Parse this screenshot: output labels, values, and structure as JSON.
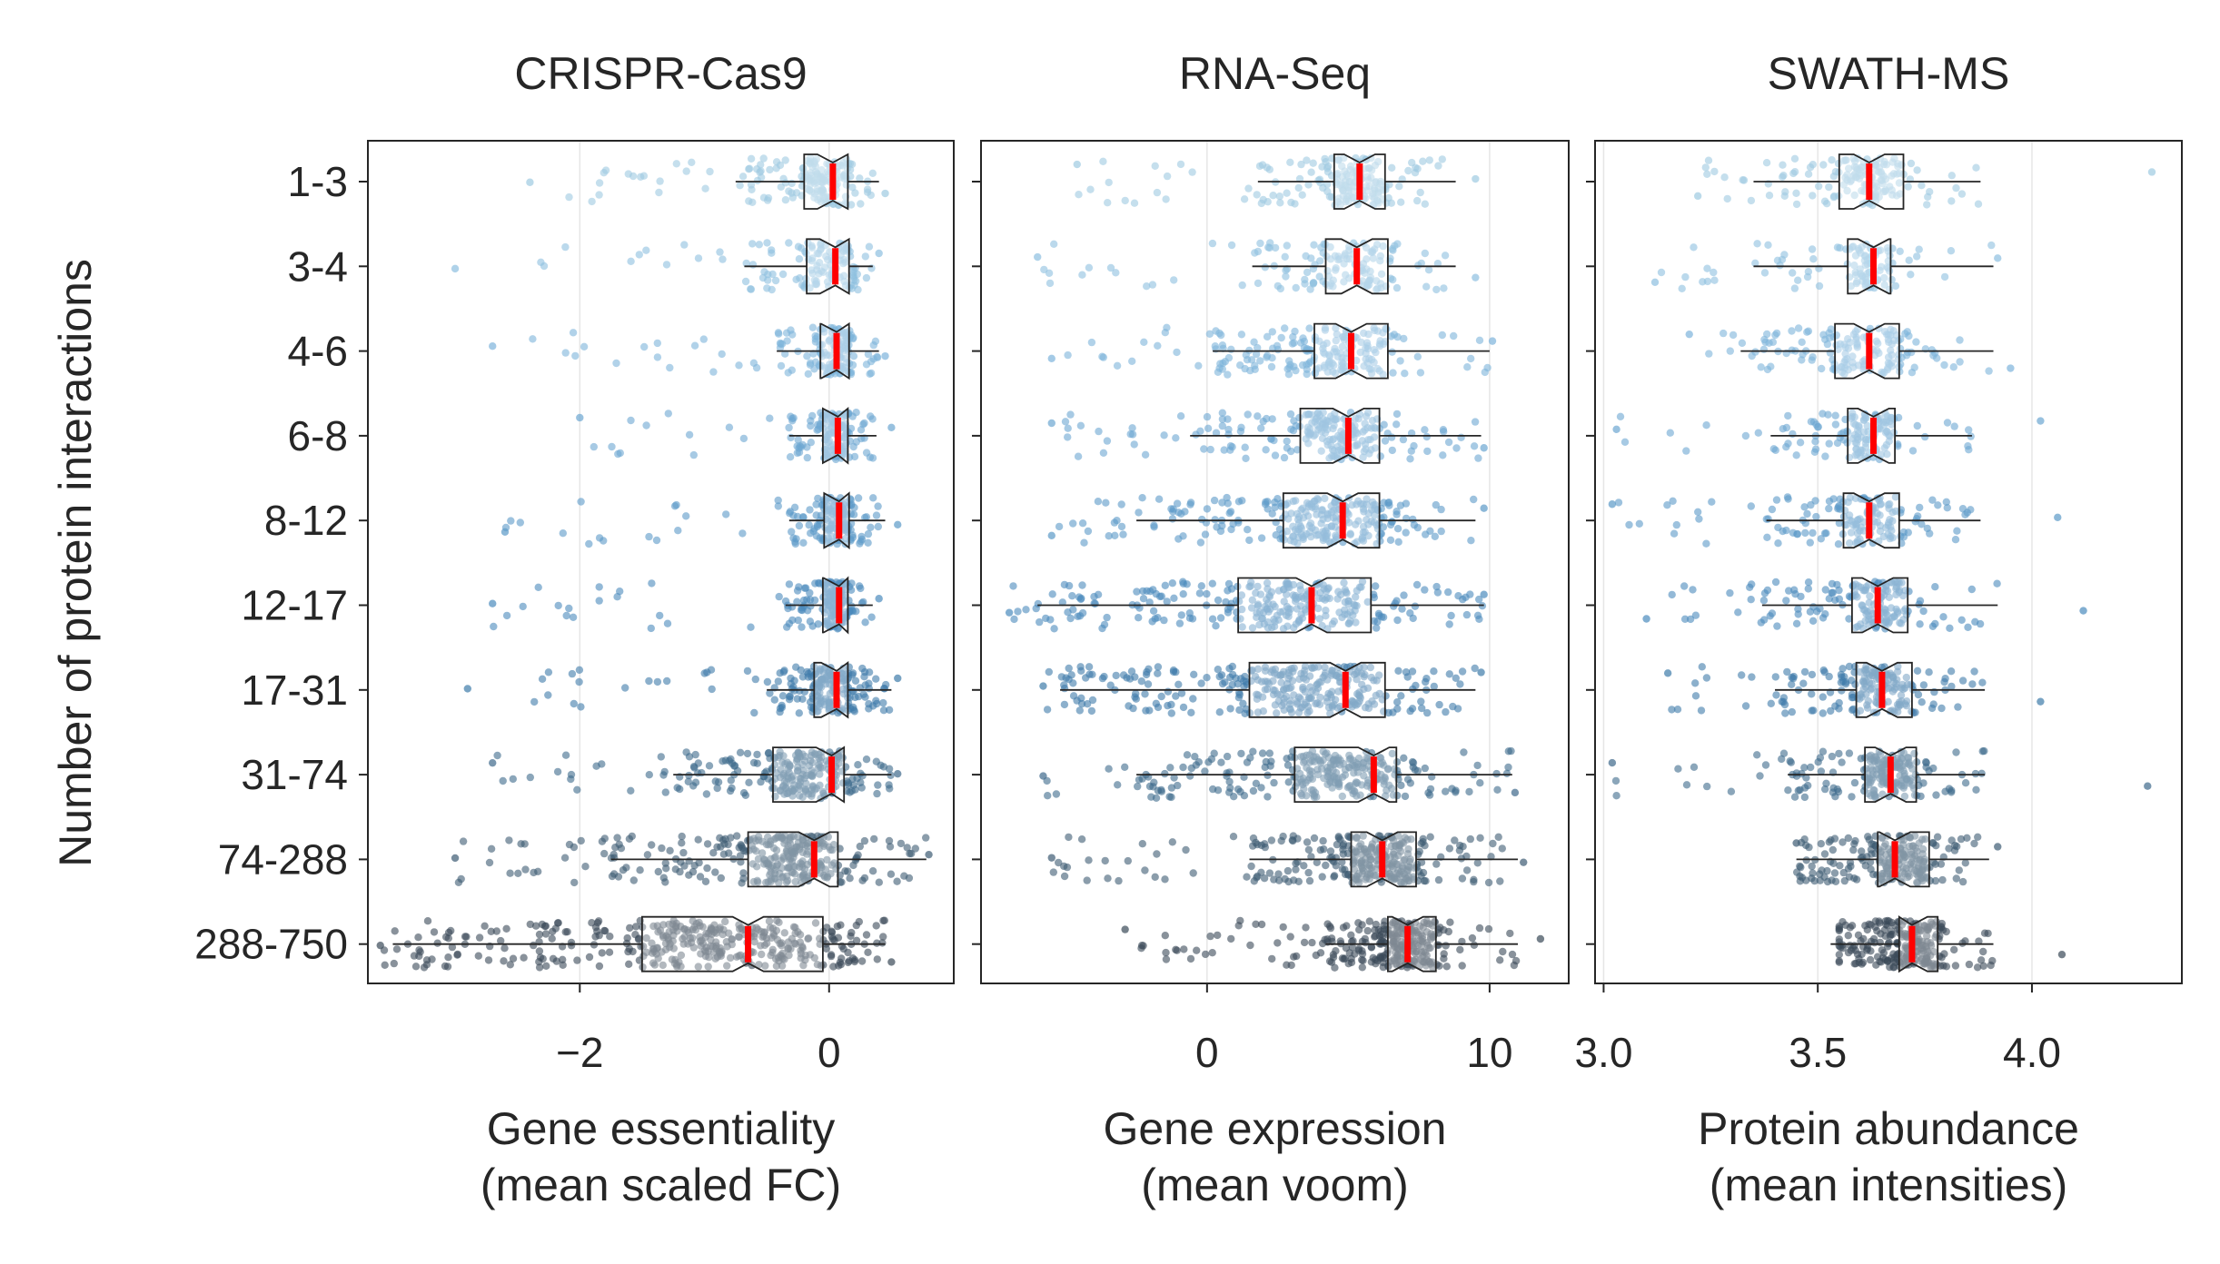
{
  "chart_data": {
    "type": "box-strip",
    "ylabel": "Number of protein interactions",
    "categories": [
      "1-3",
      "3-4",
      "4-6",
      "6-8",
      "8-12",
      "12-17",
      "17-31",
      "31-74",
      "74-288",
      "288-750"
    ],
    "point_colors": [
      "#9ecae1",
      "#8dbfdf",
      "#7db4db",
      "#6ca7d2",
      "#5b9ac8",
      "#4b8bbd",
      "#3f7caa",
      "#3e6a8c",
      "#3d5b73",
      "#3b4a58"
    ],
    "median_color": "#ff0000",
    "panels": [
      {
        "title": "CRISPR-Cas9",
        "xlabel_line1": "Gene essentiality",
        "xlabel_line2": "(mean scaled FC)",
        "xlim": [
          -3.7,
          1.0
        ],
        "ticks": [
          -2,
          0
        ],
        "tick_labels": [
          "−2",
          "0"
        ],
        "boxes": [
          {
            "wlo": -0.75,
            "q1": -0.2,
            "med": 0.03,
            "q3": 0.15,
            "whi": 0.4,
            "plo": -2.4,
            "phi": 0.45,
            "n": 180
          },
          {
            "wlo": -0.68,
            "q1": -0.18,
            "med": 0.05,
            "q3": 0.16,
            "whi": 0.35,
            "plo": -3.0,
            "phi": 0.4,
            "n": 130
          },
          {
            "wlo": -0.42,
            "q1": -0.07,
            "med": 0.06,
            "q3": 0.16,
            "whi": 0.4,
            "plo": -2.7,
            "phi": 0.45,
            "n": 160
          },
          {
            "wlo": -0.32,
            "q1": -0.05,
            "med": 0.07,
            "q3": 0.15,
            "whi": 0.38,
            "plo": -2.0,
            "phi": 0.5,
            "n": 150
          },
          {
            "wlo": -0.32,
            "q1": -0.04,
            "med": 0.08,
            "q3": 0.16,
            "whi": 0.45,
            "plo": -2.6,
            "phi": 0.55,
            "n": 170
          },
          {
            "wlo": -0.35,
            "q1": -0.05,
            "med": 0.08,
            "q3": 0.15,
            "whi": 0.35,
            "plo": -2.7,
            "phi": 0.4,
            "n": 170
          },
          {
            "wlo": -0.5,
            "q1": -0.12,
            "med": 0.06,
            "q3": 0.15,
            "whi": 0.5,
            "plo": -2.9,
            "phi": 0.55,
            "n": 200
          },
          {
            "wlo": -1.25,
            "q1": -0.45,
            "med": 0.02,
            "q3": 0.12,
            "whi": 0.5,
            "plo": -2.7,
            "phi": 0.55,
            "n": 250
          },
          {
            "wlo": -1.75,
            "q1": -0.65,
            "med": -0.12,
            "q3": 0.07,
            "whi": 0.78,
            "plo": -3.0,
            "phi": 0.8,
            "n": 300
          },
          {
            "wlo": -3.5,
            "q1": -1.5,
            "med": -0.65,
            "q3": -0.05,
            "whi": 0.45,
            "plo": -3.6,
            "phi": 0.5,
            "n": 380
          }
        ]
      },
      {
        "title": "RNA-Seq",
        "xlabel_line1": "Gene expression",
        "xlabel_line2": "(mean voom)",
        "xlim": [
          -8.0,
          12.8
        ],
        "ticks": [
          0,
          10
        ],
        "tick_labels": [
          "0",
          "10"
        ],
        "boxes": [
          {
            "wlo": 1.8,
            "q1": 4.5,
            "med": 5.4,
            "q3": 6.3,
            "whi": 8.8,
            "plo": -4.6,
            "phi": 9.5,
            "n": 180
          },
          {
            "wlo": 1.6,
            "q1": 4.2,
            "med": 5.3,
            "q3": 6.4,
            "whi": 8.8,
            "plo": -6.0,
            "phi": 9.5,
            "n": 140
          },
          {
            "wlo": 0.2,
            "q1": 3.8,
            "med": 5.1,
            "q3": 6.4,
            "whi": 10.0,
            "plo": -5.5,
            "phi": 10.1,
            "n": 200
          },
          {
            "wlo": -0.6,
            "q1": 3.3,
            "med": 5.0,
            "q3": 6.1,
            "whi": 9.7,
            "plo": -5.5,
            "phi": 9.8,
            "n": 220
          },
          {
            "wlo": -2.5,
            "q1": 2.7,
            "med": 4.8,
            "q3": 6.1,
            "whi": 9.5,
            "plo": -5.5,
            "phi": 9.8,
            "n": 260
          },
          {
            "wlo": -6.0,
            "q1": 1.1,
            "med": 3.7,
            "q3": 5.8,
            "whi": 9.8,
            "plo": -7.0,
            "phi": 9.8,
            "n": 280
          },
          {
            "wlo": -5.2,
            "q1": 1.5,
            "med": 4.9,
            "q3": 6.3,
            "whi": 9.5,
            "plo": -5.8,
            "phi": 9.7,
            "n": 320
          },
          {
            "wlo": -2.5,
            "q1": 3.1,
            "med": 5.9,
            "q3": 6.7,
            "whi": 10.8,
            "plo": -5.8,
            "phi": 10.9,
            "n": 280
          },
          {
            "wlo": 1.5,
            "q1": 5.1,
            "med": 6.2,
            "q3": 7.4,
            "whi": 11.0,
            "plo": -5.5,
            "phi": 11.2,
            "n": 300
          },
          {
            "wlo": 4.2,
            "q1": 6.4,
            "med": 7.1,
            "q3": 8.1,
            "whi": 11.0,
            "plo": -2.9,
            "phi": 11.8,
            "n": 300
          }
        ]
      },
      {
        "title": "SWATH-MS",
        "xlabel_line1": "Protein abundance",
        "xlabel_line2": "(mean intensities)",
        "xlim": [
          2.98,
          4.35
        ],
        "ticks": [
          3.0,
          3.5,
          4.0
        ],
        "tick_labels": [
          "3.0",
          "3.5",
          "4.0"
        ],
        "boxes": [
          {
            "wlo": 3.35,
            "q1": 3.55,
            "med": 3.62,
            "q3": 3.7,
            "whi": 3.88,
            "plo": 3.22,
            "phi": 4.28,
            "n": 150
          },
          {
            "wlo": 3.35,
            "q1": 3.57,
            "med": 3.63,
            "q3": 3.67,
            "whi": 3.91,
            "plo": 3.12,
            "phi": 3.92,
            "n": 110
          },
          {
            "wlo": 3.32,
            "q1": 3.54,
            "med": 3.62,
            "q3": 3.69,
            "whi": 3.91,
            "plo": 3.2,
            "phi": 3.95,
            "n": 150
          },
          {
            "wlo": 3.39,
            "q1": 3.57,
            "med": 3.63,
            "q3": 3.68,
            "whi": 3.86,
            "plo": 3.03,
            "phi": 4.02,
            "n": 140
          },
          {
            "wlo": 3.38,
            "q1": 3.56,
            "med": 3.62,
            "q3": 3.69,
            "whi": 3.88,
            "plo": 3.02,
            "phi": 4.06,
            "n": 160
          },
          {
            "wlo": 3.37,
            "q1": 3.58,
            "med": 3.64,
            "q3": 3.71,
            "whi": 3.92,
            "plo": 3.1,
            "phi": 4.12,
            "n": 170
          },
          {
            "wlo": 3.4,
            "q1": 3.59,
            "med": 3.65,
            "q3": 3.72,
            "whi": 3.89,
            "plo": 3.15,
            "phi": 4.02,
            "n": 190
          },
          {
            "wlo": 3.43,
            "q1": 3.61,
            "med": 3.67,
            "q3": 3.73,
            "whi": 3.89,
            "plo": 3.02,
            "phi": 4.27,
            "n": 200
          },
          {
            "wlo": 3.45,
            "q1": 3.64,
            "med": 3.68,
            "q3": 3.76,
            "whi": 3.9,
            "plo": 3.45,
            "phi": 3.92,
            "n": 220
          },
          {
            "wlo": 3.53,
            "q1": 3.69,
            "med": 3.72,
            "q3": 3.78,
            "whi": 3.91,
            "plo": 3.55,
            "phi": 4.07,
            "n": 240
          }
        ]
      }
    ]
  }
}
